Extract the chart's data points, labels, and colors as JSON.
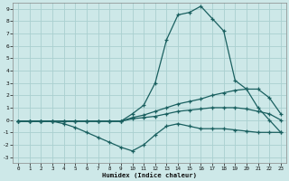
{
  "xlabel": "Humidex (Indice chaleur)",
  "xlim": [
    -0.5,
    23.5
  ],
  "ylim": [
    -3.5,
    9.5
  ],
  "xticks": [
    0,
    1,
    2,
    3,
    4,
    5,
    6,
    7,
    8,
    9,
    10,
    11,
    12,
    13,
    14,
    15,
    16,
    17,
    18,
    19,
    20,
    21,
    22,
    23
  ],
  "yticks": [
    -3,
    -2,
    -1,
    0,
    1,
    2,
    3,
    4,
    5,
    6,
    7,
    8,
    9
  ],
  "background_color": "#cde8e8",
  "grid_color": "#aad0d0",
  "line_color": "#1a6060",
  "series": {
    "line_spike_x": [
      0,
      1,
      2,
      3,
      4,
      5,
      6,
      7,
      8,
      9,
      10,
      11,
      12,
      13,
      14,
      15,
      16,
      17,
      18,
      19,
      20,
      21,
      22,
      23
    ],
    "line_spike_y": [
      -0.1,
      -0.1,
      -0.1,
      -0.1,
      -0.1,
      -0.1,
      -0.1,
      -0.1,
      -0.1,
      -0.1,
      0.5,
      1.2,
      3.0,
      6.5,
      8.5,
      8.7,
      9.2,
      8.2,
      7.2,
      3.2,
      2.5,
      1.0,
      0.0,
      -1.0
    ],
    "line_up_x": [
      0,
      1,
      2,
      3,
      4,
      5,
      6,
      7,
      8,
      9,
      10,
      11,
      12,
      13,
      14,
      15,
      16,
      17,
      18,
      19,
      20,
      21,
      22,
      23
    ],
    "line_up_y": [
      -0.1,
      -0.1,
      -0.1,
      -0.1,
      -0.1,
      -0.1,
      -0.1,
      -0.1,
      -0.1,
      -0.1,
      0.2,
      0.4,
      0.7,
      1.0,
      1.3,
      1.5,
      1.7,
      2.0,
      2.2,
      2.4,
      2.5,
      2.5,
      1.8,
      0.5
    ],
    "line_mid_x": [
      0,
      1,
      2,
      3,
      4,
      5,
      6,
      7,
      8,
      9,
      10,
      11,
      12,
      13,
      14,
      15,
      16,
      17,
      18,
      19,
      20,
      21,
      22,
      23
    ],
    "line_mid_y": [
      -0.1,
      -0.1,
      -0.1,
      -0.1,
      -0.1,
      -0.1,
      -0.1,
      -0.1,
      -0.1,
      -0.1,
      0.1,
      0.2,
      0.3,
      0.5,
      0.7,
      0.8,
      0.9,
      1.0,
      1.0,
      1.0,
      0.9,
      0.7,
      0.5,
      0.0
    ],
    "line_down_x": [
      0,
      1,
      2,
      3,
      4,
      5,
      6,
      7,
      8,
      9,
      10,
      11,
      12,
      13,
      14,
      15,
      16,
      17,
      18,
      19,
      20,
      21,
      22,
      23
    ],
    "line_down_y": [
      -0.1,
      -0.1,
      -0.1,
      -0.1,
      -0.3,
      -0.6,
      -1.0,
      -1.4,
      -1.8,
      -2.2,
      -2.5,
      -2.0,
      -1.2,
      -0.5,
      -0.3,
      -0.5,
      -0.7,
      -0.7,
      -0.7,
      -0.8,
      -0.9,
      -1.0,
      -1.0,
      -1.0
    ]
  }
}
